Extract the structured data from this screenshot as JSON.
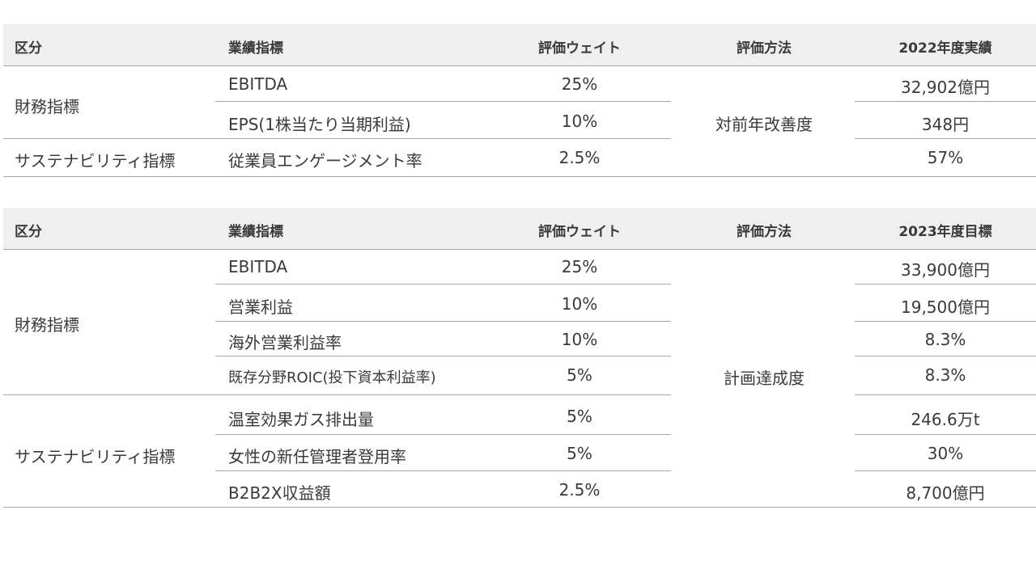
{
  "table_2022": {
    "headers": {
      "category": "区分",
      "indicator": "業績指標",
      "weight": "評価ウェイト",
      "method": "評価方法",
      "result": "2022年度実績"
    },
    "rows": [
      {
        "category": "財務指標",
        "indicator": "EBITDA",
        "weight": "25%",
        "result": "32,902億円"
      },
      {
        "category": "",
        "indicator": "EPS(1株当たり当期利益)",
        "weight": "10%",
        "result": "348円"
      },
      {
        "category": "サステナビリティ指標",
        "indicator": "従業員エンゲージメント率",
        "weight": "2.5%",
        "result": "57%"
      }
    ],
    "method": "対前年改善度"
  },
  "table_2023": {
    "headers": {
      "category": "区分",
      "indicator": "業績指標",
      "weight": "評価ウェイト",
      "method": "評価方法",
      "target": "2023年度目標"
    },
    "groups": {
      "financial": "財務指標",
      "sustainability": "サステナビリティ指標"
    },
    "rows": [
      {
        "indicator": "EBITDA",
        "weight": "25%",
        "target": "33,900億円"
      },
      {
        "indicator": "営業利益",
        "weight": "10%",
        "target": "19,500億円"
      },
      {
        "indicator": "海外営業利益率",
        "weight": "10%",
        "target": "8.3%"
      },
      {
        "indicator": "既存分野ROIC(投下資本利益率)",
        "weight": "5%",
        "target": "8.3%"
      },
      {
        "indicator": "温室効果ガス排出量",
        "weight": "5%",
        "target": "246.6万t"
      },
      {
        "indicator": "女性の新任管理者登用率",
        "weight": "5%",
        "target": "30%"
      },
      {
        "indicator": "B2B2X収益額",
        "weight": "2.5%",
        "target": "8,700億円"
      }
    ],
    "method": "計画達成度"
  }
}
